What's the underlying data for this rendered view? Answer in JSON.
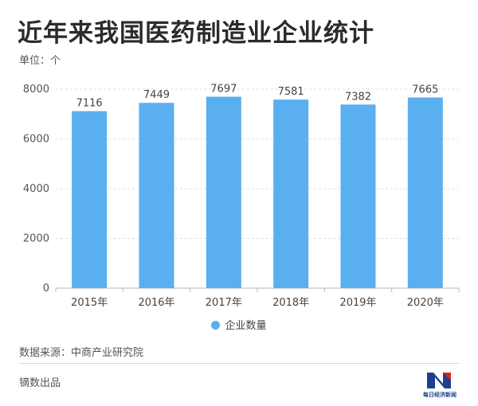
{
  "header": {
    "title": "近年来我国医药制造业企业统计",
    "unit": "单位：个"
  },
  "legend": {
    "label": "企业数量"
  },
  "footer": {
    "source": "数据来源：中商产业研究院",
    "credit": "镝数出品",
    "logo_text": "每日经济新闻"
  },
  "colors": {
    "bar": "#5aaff0",
    "grid": "#dddddd",
    "axis": "#bbbbbb"
  },
  "chart_data": {
    "type": "bar",
    "categories": [
      "2015年",
      "2016年",
      "2017年",
      "2018年",
      "2019年",
      "2020年"
    ],
    "series": [
      {
        "name": "企业数量",
        "values": [
          7116,
          7449,
          7697,
          7581,
          7382,
          7665
        ]
      }
    ],
    "ylim": [
      0,
      8000
    ],
    "yticks": [
      0,
      2000,
      4000,
      6000,
      8000
    ],
    "grid": true,
    "legend_position": "bottom",
    "xlabel": "",
    "ylabel": ""
  }
}
